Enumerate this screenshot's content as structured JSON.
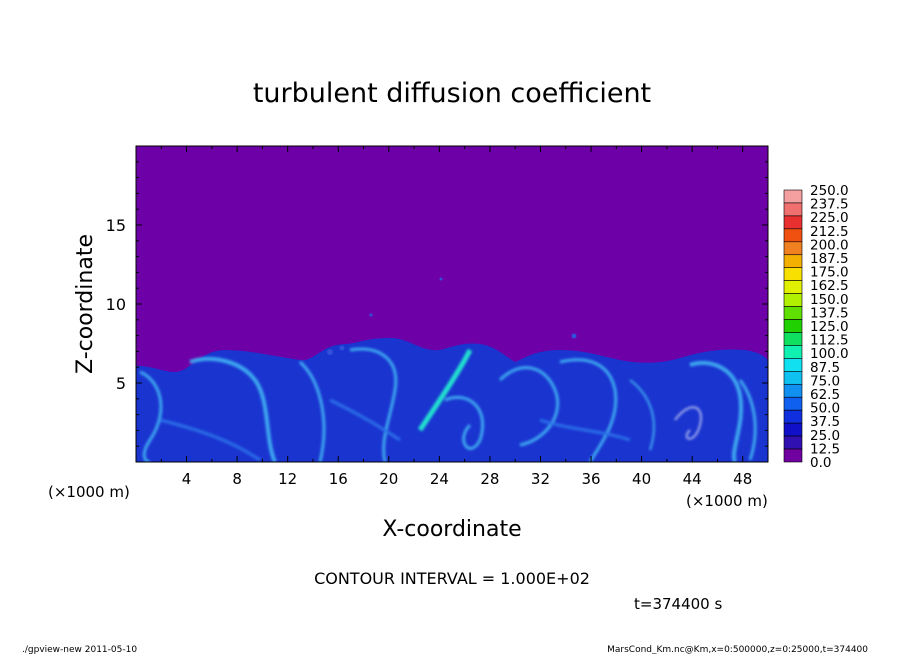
{
  "chart_data": {
    "type": "heatmap",
    "title": "turbulent diffusion coefficient",
    "xlabel": "X-coordinate",
    "ylabel": "Z-coordinate",
    "x_unit_left": "(×1000 m)",
    "x_unit_right": "(×1000 m)",
    "xlim": [
      0,
      50
    ],
    "ylim": [
      0,
      20
    ],
    "x_ticks": [
      4,
      8,
      12,
      16,
      20,
      24,
      28,
      32,
      36,
      40,
      44,
      48
    ],
    "y_ticks": [
      5,
      10,
      15
    ],
    "colorbar": {
      "levels": [
        "250.0",
        "237.5",
        "225.0",
        "212.5",
        "200.0",
        "187.5",
        "175.0",
        "162.5",
        "150.0",
        "137.5",
        "125.0",
        "112.5",
        "100.0",
        "87.5",
        "75.0",
        "62.5",
        "50.0",
        "37.5",
        "25.0",
        "12.5",
        "0.0"
      ],
      "colors": [
        "#f4a0a0",
        "#f07070",
        "#e83030",
        "#f05010",
        "#f08020",
        "#f4b000",
        "#f8e000",
        "#e0f000",
        "#b0f000",
        "#60e000",
        "#20d000",
        "#10e060",
        "#10f0b0",
        "#10e0f0",
        "#10c0f0",
        "#1090f0",
        "#1060f0",
        "#1030e0",
        "#1010c8",
        "#3010b0",
        "#7000a0"
      ]
    },
    "background_value": "0.0",
    "turbulent_layer_top_approx_km": [
      6,
      6.5,
      7,
      7.5,
      7,
      6.5,
      7,
      6.5
    ],
    "grid": false
  },
  "annotations": {
    "contour_interval": "CONTOUR INTERVAL = 1.000E+02",
    "time": "t=374400 s",
    "footer_left": "./gpview-new  2011-05-10",
    "footer_right": "MarsCond_Km.nc@Km,x=0:500000,z=0:25000,t=374400"
  },
  "colors": {
    "background_fill": "#6e00a8",
    "turbulent_base": "#1a34d0",
    "turbulent_highlight": "#3ea8f0",
    "turbulent_peak": "#20e0d0"
  }
}
